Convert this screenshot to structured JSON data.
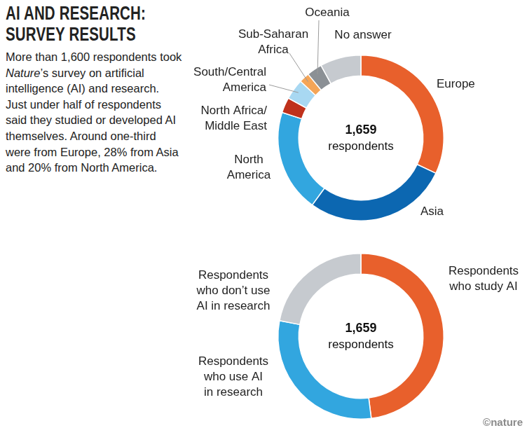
{
  "title": [
    "AI AND RESEARCH:",
    "SURVEY RESULTS"
  ],
  "description": [
    {
      "text": "More than 1,600 respondents took "
    },
    {
      "text": "Nature",
      "italic": true
    },
    {
      "text": "’s survey on artificial intelligence (AI) and research. Just under half of respondents said they studied or developed AI themselves. Around one-third were from Europe, 28% from Asia and 20% from North America."
    }
  ],
  "credit": "©nature",
  "chart_data": [
    {
      "type": "doughnut",
      "categories": [
        "Europe",
        "Asia",
        "North America",
        "North Africa/Middle East",
        "South/Central America",
        "Sub-Saharan Africa",
        "Oceania",
        "No answer"
      ],
      "values": [
        32,
        28,
        20,
        3,
        4,
        2,
        3,
        8
      ],
      "colors": [
        "#e8602c",
        "#0c67b1",
        "#32a6df",
        "#bf311c",
        "#a8d8f2",
        "#f5a557",
        "#8b9095",
        "#c6cacf"
      ],
      "total": 1659,
      "total_label": "respondents"
    },
    {
      "type": "doughnut",
      "categories": [
        "Respondents who study AI",
        "Respondents who use AI in research",
        "Respondents who don’t use AI in research"
      ],
      "values": [
        48,
        30,
        22
      ],
      "colors": [
        "#e8602c",
        "#32a6df",
        "#c6cacf"
      ],
      "total": 1659,
      "total_label": "respondents"
    }
  ]
}
